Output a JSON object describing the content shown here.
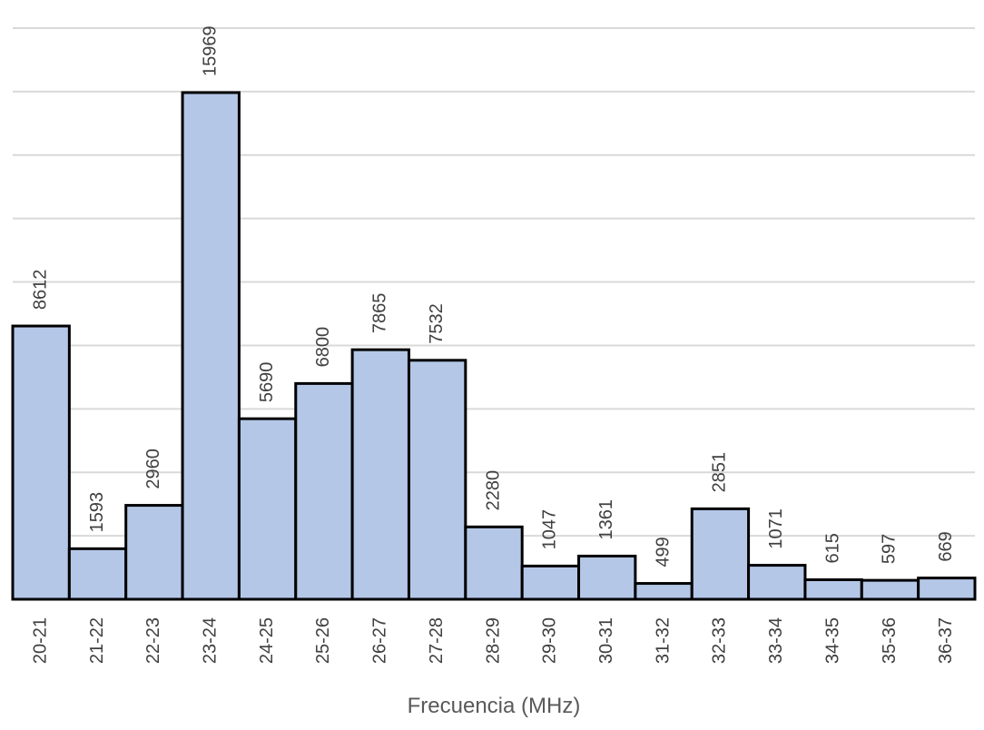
{
  "chart_data": {
    "type": "bar",
    "title": "",
    "xlabel": "Frecuencia (MHz)",
    "ylabel": "",
    "categories": [
      "20-21",
      "21-22",
      "22-23",
      "23-24",
      "24-25",
      "25-26",
      "26-27",
      "27-28",
      "28-29",
      "29-30",
      "30-31",
      "31-32",
      "32-33",
      "33-34",
      "34-35",
      "35-36",
      "36-37"
    ],
    "values": [
      8612,
      1593,
      2960,
      15969,
      5690,
      6800,
      7865,
      7532,
      2280,
      1047,
      1361,
      499,
      2851,
      1071,
      615,
      597,
      669
    ],
    "ylim": [
      0,
      18000
    ],
    "grid": true,
    "legend": "none",
    "bar_color": "#b4c7e7",
    "bar_edge_color": "#000000",
    "grid_color": "#d9d9d9"
  }
}
